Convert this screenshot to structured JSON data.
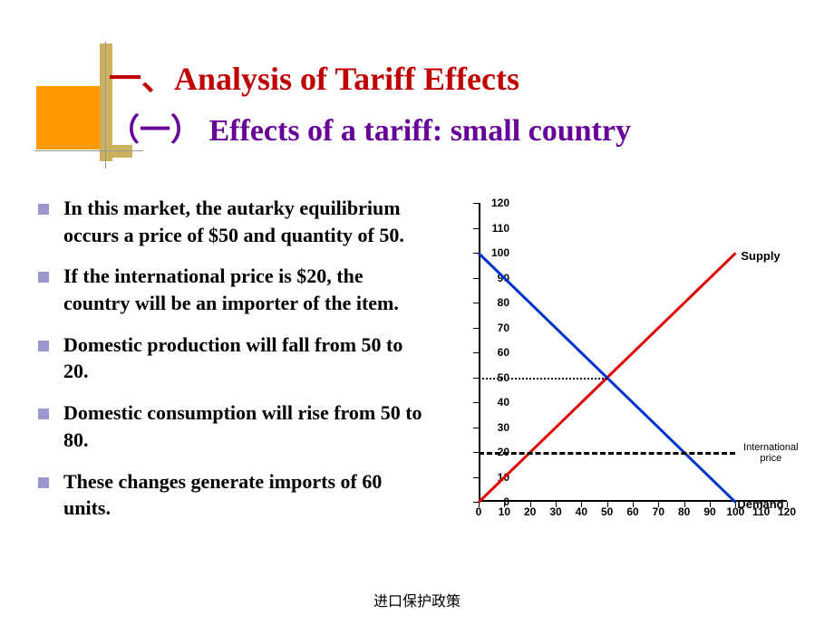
{
  "title": {
    "main": "一、Analysis of Tariff Effects",
    "sub": "（一） Effects of a tariff: small country"
  },
  "bullets": [
    "In this market, the autarky equilibrium occurs a price of $50 and quantity of 50.",
    "If the international price is $20, the country will be an importer of the item.",
    "Domestic production will fall from 50 to 20.",
    "Domestic consumption will rise from 50 to 80.",
    "These changes generate imports of 60 units."
  ],
  "chart": {
    "type": "line",
    "xlim": [
      0,
      120
    ],
    "ylim": [
      0,
      120
    ],
    "xticks": [
      0,
      10,
      20,
      30,
      40,
      50,
      60,
      70,
      80,
      90,
      100,
      110,
      120
    ],
    "yticks": [
      0,
      10,
      20,
      30,
      40,
      50,
      60,
      70,
      80,
      90,
      100,
      110,
      120
    ],
    "supply": {
      "x": [
        0,
        100
      ],
      "y": [
        0,
        100
      ],
      "color": "#e00000",
      "width": 3,
      "label": "Supply"
    },
    "demand": {
      "x": [
        0,
        100
      ],
      "y": [
        100,
        0
      ],
      "color": "#0033cc",
      "width": 3,
      "label": "Demand"
    },
    "equilibrium_line": {
      "y": 50,
      "x_end": 50,
      "style": "dotted",
      "width": 2
    },
    "intl_price_line": {
      "y": 20,
      "x_end": 100,
      "style": "dashed",
      "width": 3,
      "label": "International price"
    },
    "background_color": "#ffffff",
    "axis_color": "#000000",
    "tick_fontsize": 12,
    "label_fontsize": 13
  },
  "footer": "进口保护政策",
  "decoration": {
    "orange": "#ff9900",
    "gold": "#ccb060"
  }
}
